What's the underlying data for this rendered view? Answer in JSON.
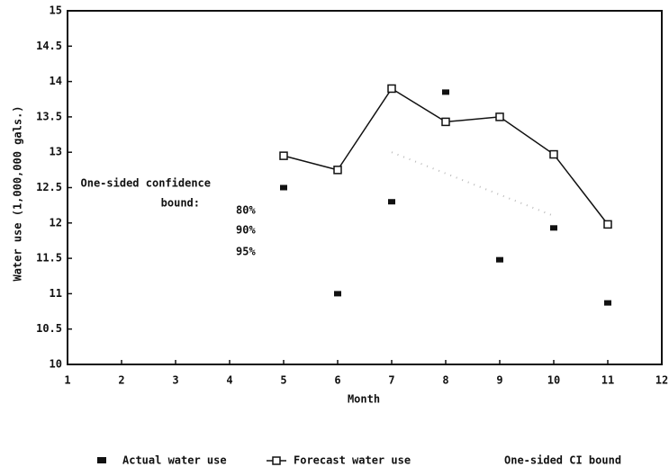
{
  "chart_data": {
    "type": "line",
    "x": [
      5,
      6,
      7,
      8,
      9,
      10,
      11
    ],
    "series": [
      {
        "name": "Actual water use",
        "color": "#111111",
        "style": "square",
        "values": [
          12.5,
          11.0,
          12.3,
          13.85,
          11.48,
          11.93,
          10.87
        ]
      },
      {
        "name": "Forecast water use",
        "color": "#111111",
        "style": "line-open-square",
        "values": [
          12.95,
          12.75,
          13.9,
          13.43,
          13.5,
          12.97,
          11.98
        ]
      },
      {
        "name": "One-sided CI bound",
        "color": "#bbbbbb",
        "style": "dotted",
        "values": [
          null,
          null,
          13.0,
          12.7,
          12.4,
          12.1,
          null
        ]
      }
    ],
    "xlabel": "Month",
    "ylabel": "Water use (1,000,000 gals.)",
    "xlim": [
      1,
      12
    ],
    "xticks": [
      1,
      2,
      3,
      4,
      5,
      6,
      7,
      8,
      9,
      10,
      11,
      12
    ],
    "ylim": [
      10,
      15
    ],
    "yticks": [
      10,
      10.5,
      11,
      11.5,
      12,
      12.5,
      13,
      13.5,
      14,
      14.5,
      15
    ],
    "annotations": [
      "One-sided confidence",
      "bound:",
      "80%",
      "90%",
      "95%"
    ]
  }
}
